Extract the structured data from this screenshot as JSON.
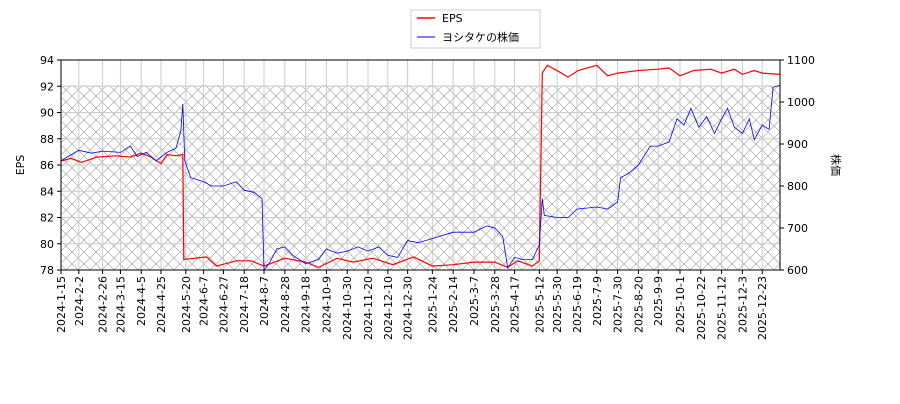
{
  "chart_data": {
    "type": "line",
    "ylabel_left": "EPS",
    "ylabel_right": "株価",
    "ylim_left": [
      78,
      94
    ],
    "ylim_right": [
      600,
      1100
    ],
    "yticks_left": [
      78,
      80,
      82,
      84,
      86,
      88,
      90,
      92,
      94
    ],
    "yticks_right": [
      600,
      700,
      800,
      900,
      1000,
      1100
    ],
    "xlim": [
      "2024-01-15",
      "2026-01-10"
    ],
    "xticks": [
      "2024-1-15",
      "2024-2-2",
      "2024-2-26",
      "2024-3-15",
      "2024-4-5",
      "2024-4-25",
      "2024-5-20",
      "2024-6-7",
      "2024-6-27",
      "2024-7-18",
      "2024-8-7",
      "2024-8-28",
      "2024-9-18",
      "2024-10-9",
      "2024-10-30",
      "2024-11-20",
      "2024-12-10",
      "2024-12-30",
      "2025-1-24",
      "2025-2-14",
      "2025-3-7",
      "2025-3-28",
      "2025-4-17",
      "2025-5-12",
      "2025-5-30",
      "2025-6-19",
      "2025-7-9",
      "2025-7-30",
      "2025-8-20",
      "2025-9-9",
      "2025-10-1",
      "2025-10-22",
      "2025-11-12",
      "2025-12-3",
      "2025-12-23"
    ],
    "grid": true,
    "legend": "top-center",
    "series": [
      {
        "name": "EPS",
        "color": "#ff0000",
        "axis": "left",
        "points": [
          [
            "2024-01-15",
            86.3
          ],
          [
            "2024-01-25",
            86.5
          ],
          [
            "2024-02-05",
            86.2
          ],
          [
            "2024-02-20",
            86.6
          ],
          [
            "2024-03-10",
            86.7
          ],
          [
            "2024-03-25",
            86.6
          ],
          [
            "2024-04-05",
            86.9
          ],
          [
            "2024-04-15",
            86.6
          ],
          [
            "2024-04-25",
            86.1
          ],
          [
            "2024-05-01",
            86.8
          ],
          [
            "2024-05-10",
            86.7
          ],
          [
            "2024-05-17",
            86.8
          ],
          [
            "2024-05-18",
            78.8
          ],
          [
            "2024-06-10",
            79.0
          ],
          [
            "2024-06-20",
            78.3
          ],
          [
            "2024-07-10",
            78.7
          ],
          [
            "2024-07-25",
            78.7
          ],
          [
            "2024-08-07",
            78.3
          ],
          [
            "2024-08-28",
            78.9
          ],
          [
            "2024-09-18",
            78.6
          ],
          [
            "2024-10-01",
            78.2
          ],
          [
            "2024-10-20",
            78.9
          ],
          [
            "2024-11-05",
            78.6
          ],
          [
            "2024-11-25",
            78.9
          ],
          [
            "2024-12-15",
            78.4
          ],
          [
            "2025-01-05",
            79.0
          ],
          [
            "2025-01-24",
            78.3
          ],
          [
            "2025-02-14",
            78.4
          ],
          [
            "2025-03-07",
            78.6
          ],
          [
            "2025-03-28",
            78.6
          ],
          [
            "2025-04-10",
            78.2
          ],
          [
            "2025-04-20",
            78.7
          ],
          [
            "2025-05-05",
            78.3
          ],
          [
            "2025-05-12",
            78.7
          ],
          [
            "2025-05-15",
            93.0
          ],
          [
            "2025-05-20",
            93.6
          ],
          [
            "2025-06-01",
            93.1
          ],
          [
            "2025-06-10",
            92.7
          ],
          [
            "2025-06-20",
            93.2
          ],
          [
            "2025-07-09",
            93.6
          ],
          [
            "2025-07-20",
            92.8
          ],
          [
            "2025-07-30",
            93.0
          ],
          [
            "2025-08-20",
            93.2
          ],
          [
            "2025-09-09",
            93.3
          ],
          [
            "2025-09-20",
            93.4
          ],
          [
            "2025-10-01",
            92.8
          ],
          [
            "2025-10-15",
            93.2
          ],
          [
            "2025-11-01",
            93.3
          ],
          [
            "2025-11-12",
            93.0
          ],
          [
            "2025-11-25",
            93.3
          ],
          [
            "2025-12-03",
            92.9
          ],
          [
            "2025-12-15",
            93.2
          ],
          [
            "2025-12-23",
            93.0
          ],
          [
            "2026-01-10",
            92.9
          ]
        ]
      },
      {
        "name": "ヨシタケの株価",
        "color": "#0000ff",
        "axis": "right",
        "points": [
          [
            "2024-01-15",
            860
          ],
          [
            "2024-01-22",
            870
          ],
          [
            "2024-02-02",
            885
          ],
          [
            "2024-02-15",
            878
          ],
          [
            "2024-02-26",
            883
          ],
          [
            "2024-03-15",
            880
          ],
          [
            "2024-03-25",
            895
          ],
          [
            "2024-04-01",
            870
          ],
          [
            "2024-04-10",
            880
          ],
          [
            "2024-04-20",
            860
          ],
          [
            "2024-05-01",
            880
          ],
          [
            "2024-05-10",
            890
          ],
          [
            "2024-05-15",
            930
          ],
          [
            "2024-05-17",
            995
          ],
          [
            "2024-05-19",
            860
          ],
          [
            "2024-05-25",
            820
          ],
          [
            "2024-06-07",
            810
          ],
          [
            "2024-06-15",
            800
          ],
          [
            "2024-06-27",
            800
          ],
          [
            "2024-07-10",
            810
          ],
          [
            "2024-07-18",
            790
          ],
          [
            "2024-07-28",
            785
          ],
          [
            "2024-08-05",
            770
          ],
          [
            "2024-08-07",
            600
          ],
          [
            "2024-08-12",
            615
          ],
          [
            "2024-08-20",
            650
          ],
          [
            "2024-08-28",
            655
          ],
          [
            "2024-09-05",
            635
          ],
          [
            "2024-09-18",
            615
          ],
          [
            "2024-10-01",
            625
          ],
          [
            "2024-10-09",
            650
          ],
          [
            "2024-10-20",
            640
          ],
          [
            "2024-10-30",
            645
          ],
          [
            "2024-11-10",
            655
          ],
          [
            "2024-11-20",
            645
          ],
          [
            "2024-12-01",
            655
          ],
          [
            "2024-12-10",
            635
          ],
          [
            "2024-12-20",
            630
          ],
          [
            "2024-12-30",
            670
          ],
          [
            "2025-01-10",
            665
          ],
          [
            "2025-01-24",
            675
          ],
          [
            "2025-02-14",
            690
          ],
          [
            "2025-03-07",
            690
          ],
          [
            "2025-03-20",
            705
          ],
          [
            "2025-03-28",
            700
          ],
          [
            "2025-04-05",
            680
          ],
          [
            "2025-04-10",
            605
          ],
          [
            "2025-04-17",
            630
          ],
          [
            "2025-04-25",
            625
          ],
          [
            "2025-05-05",
            625
          ],
          [
            "2025-05-12",
            660
          ],
          [
            "2025-05-15",
            770
          ],
          [
            "2025-05-17",
            730
          ],
          [
            "2025-05-30",
            725
          ],
          [
            "2025-06-10",
            725
          ],
          [
            "2025-06-19",
            745
          ],
          [
            "2025-07-09",
            750
          ],
          [
            "2025-07-20",
            745
          ],
          [
            "2025-07-30",
            762
          ],
          [
            "2025-08-02",
            820
          ],
          [
            "2025-08-10",
            830
          ],
          [
            "2025-08-20",
            850
          ],
          [
            "2025-09-01",
            895
          ],
          [
            "2025-09-09",
            895
          ],
          [
            "2025-09-20",
            905
          ],
          [
            "2025-09-28",
            960
          ],
          [
            "2025-10-05",
            945
          ],
          [
            "2025-10-12",
            985
          ],
          [
            "2025-10-20",
            940
          ],
          [
            "2025-10-28",
            965
          ],
          [
            "2025-11-05",
            925
          ],
          [
            "2025-11-12",
            960
          ],
          [
            "2025-11-18",
            985
          ],
          [
            "2025-11-25",
            940
          ],
          [
            "2025-12-03",
            925
          ],
          [
            "2025-12-10",
            960
          ],
          [
            "2025-12-15",
            910
          ],
          [
            "2025-12-23",
            945
          ],
          [
            "2025-12-30",
            935
          ],
          [
            "2026-01-03",
            1035
          ],
          [
            "2026-01-10",
            1040
          ]
        ]
      }
    ]
  }
}
